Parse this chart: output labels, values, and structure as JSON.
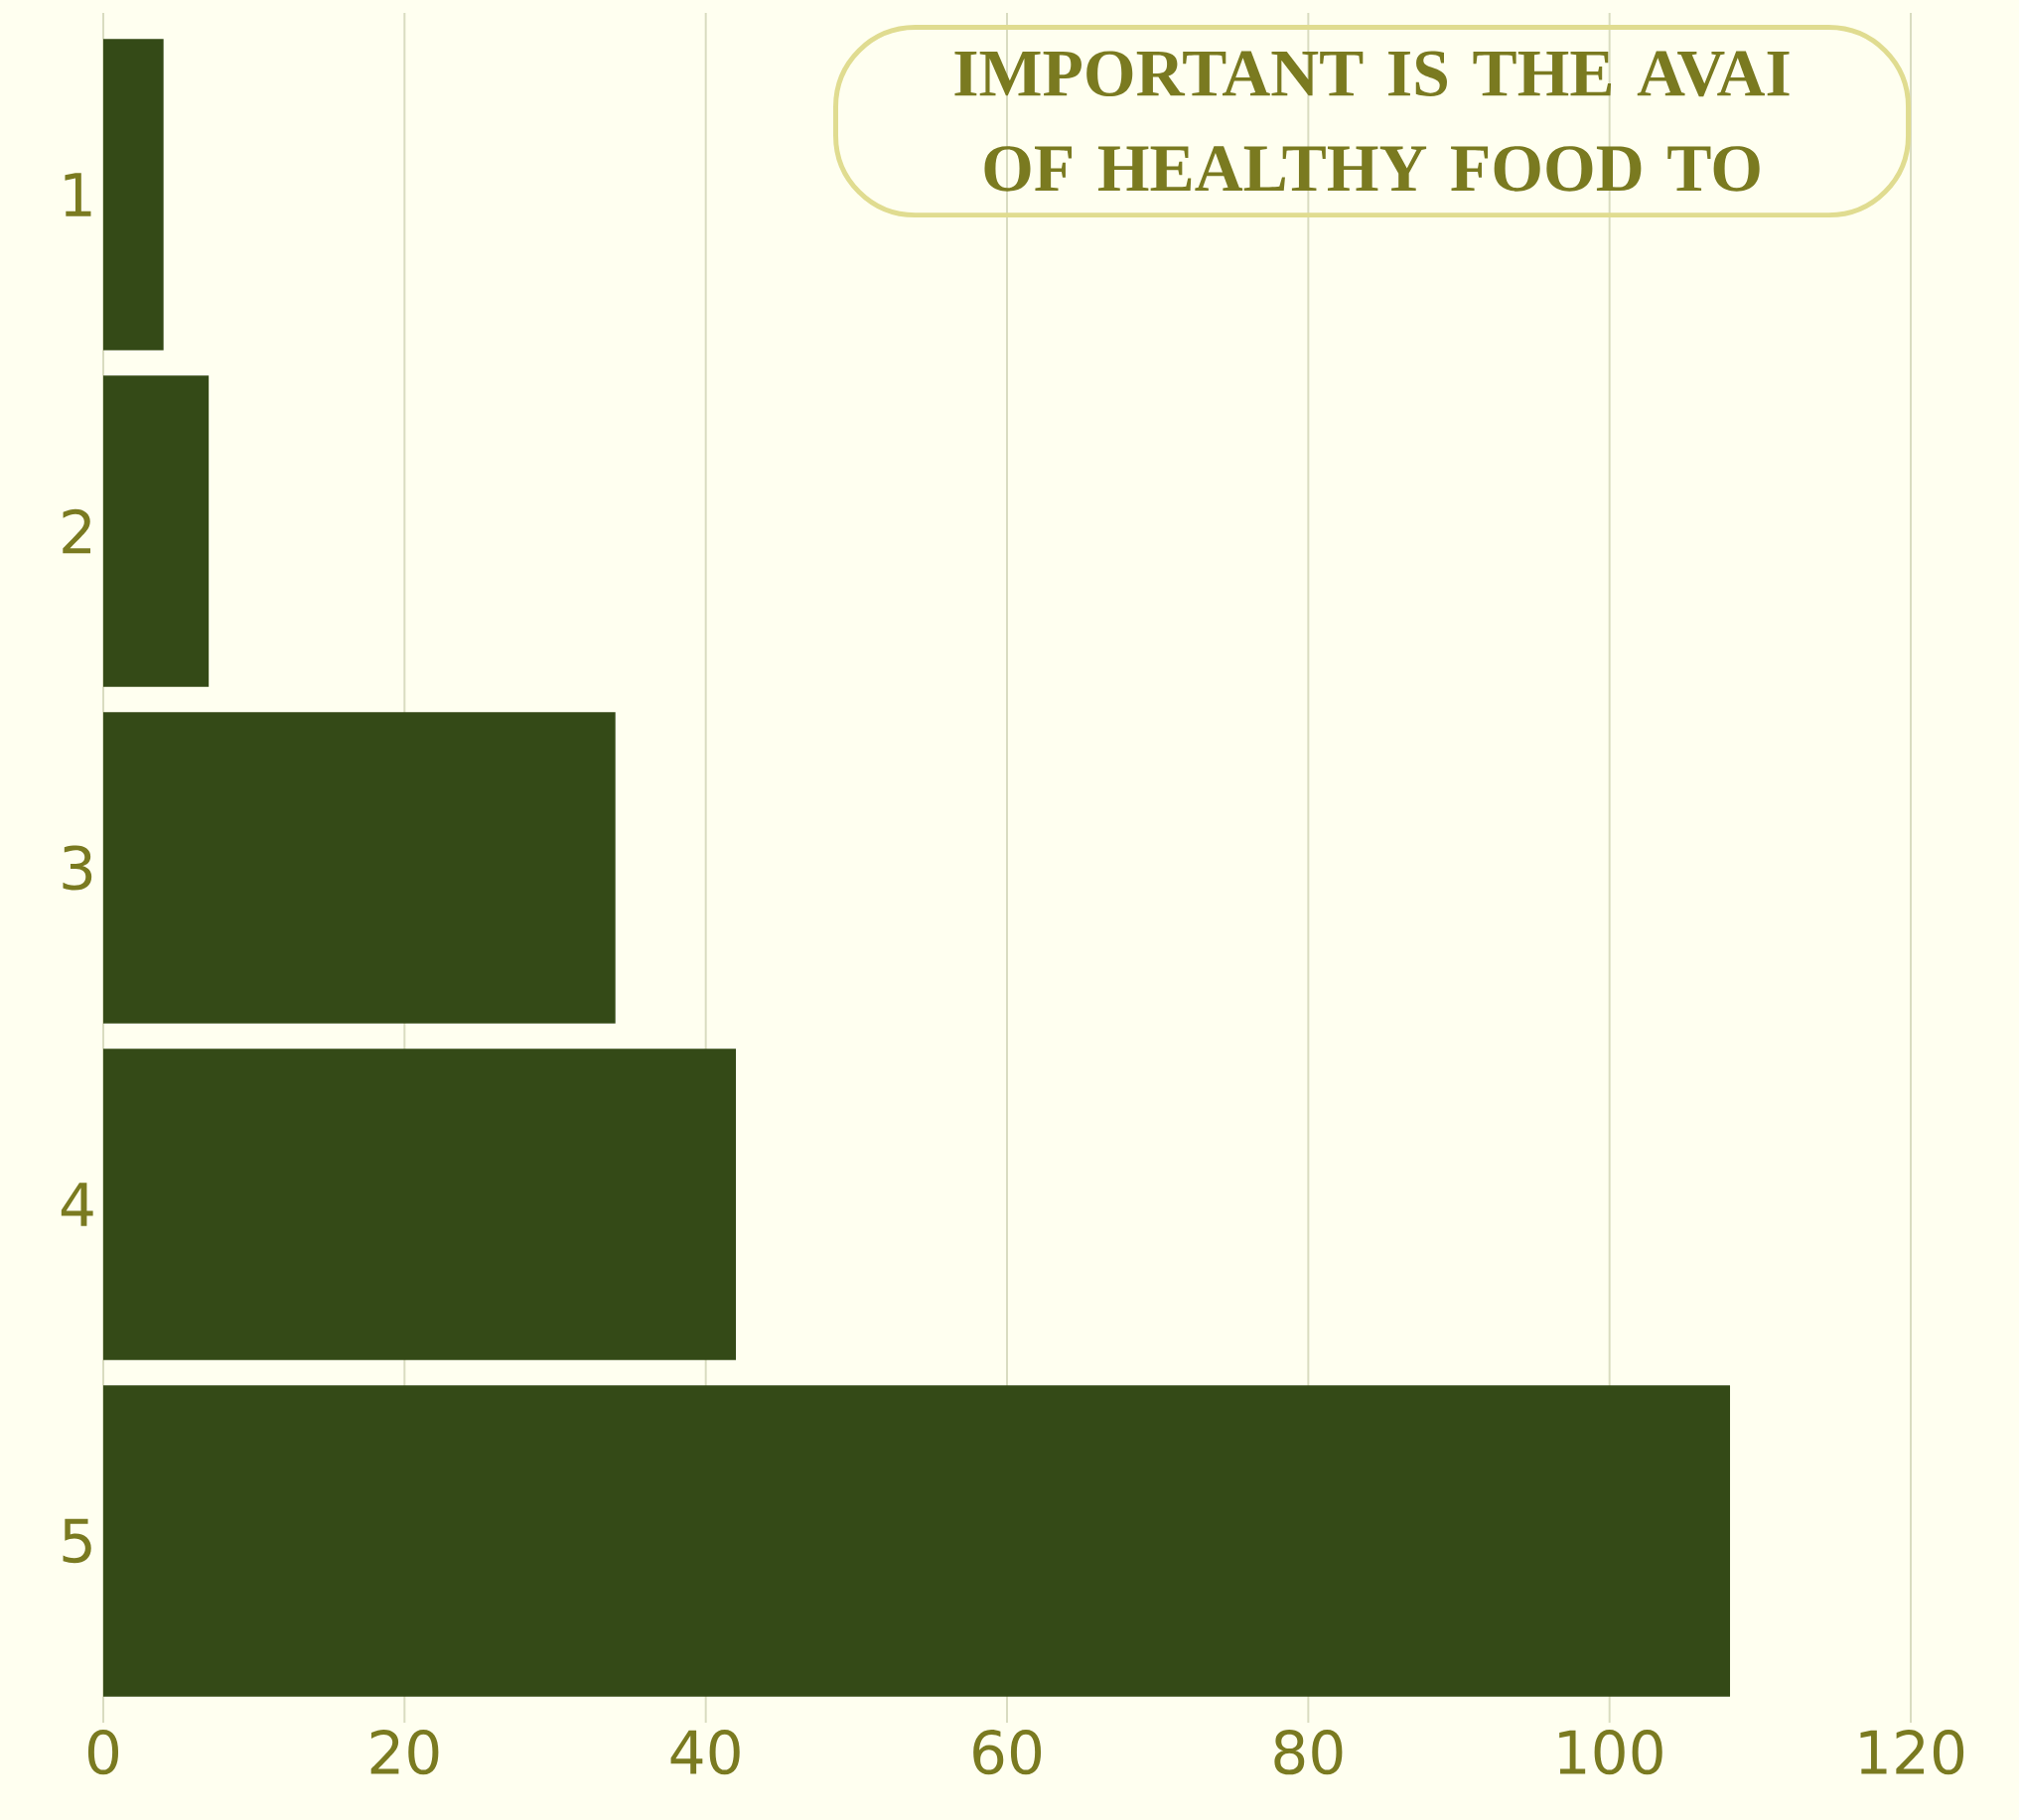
{
  "chart_data": {
    "type": "bar",
    "orientation": "horizontal",
    "title": "IMPORTANT IS THE AVAI OF HEALTHY FOOD TO",
    "categories": [
      "1",
      "2",
      "3",
      "4",
      "5"
    ],
    "values": [
      4,
      7,
      34,
      42,
      108
    ],
    "color": "#344a17",
    "xlim": [
      0,
      120
    ],
    "xticks": [
      0,
      20,
      40,
      60,
      80,
      100,
      120
    ],
    "grid": "x"
  }
}
